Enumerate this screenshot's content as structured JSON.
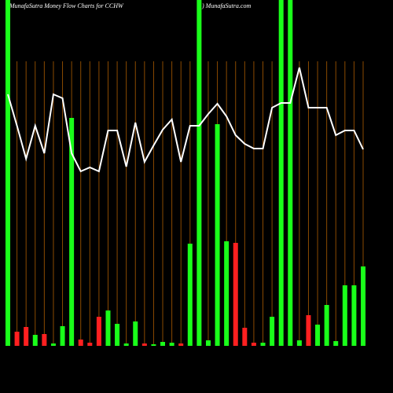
{
  "chart_data": {
    "type": "bar",
    "title": "MunafaSutra  Money Flow  Charts for CCHW",
    "subtitle": ") MunafaSutra.com",
    "categories": [
      null,
      null,
      null,
      null,
      null,
      null,
      null,
      null,
      null,
      null,
      null,
      null,
      null,
      null,
      null,
      null,
      null,
      null,
      null,
      null,
      null,
      null,
      null,
      null,
      null,
      null,
      null,
      null,
      null,
      null,
      null,
      null,
      null,
      null,
      null,
      null,
      null,
      null,
      null,
      null
    ],
    "values": [
      440,
      18,
      24,
      14,
      15,
      3,
      25,
      290,
      8,
      4,
      37,
      45,
      28,
      3,
      31,
      3,
      2,
      5,
      4,
      3,
      130,
      440,
      7,
      282,
      133,
      131,
      23,
      4,
      4,
      37,
      440,
      440,
      7,
      39,
      27,
      52,
      6,
      77,
      77,
      101
    ],
    "bar_colors": [
      "#1aff1a",
      "#ff2020",
      "#ff2020",
      "#1aff1a",
      "#ff2020",
      "#1aff1a",
      "#1aff1a",
      "#1aff1a",
      "#ff2020",
      "#ff2020",
      "#ff2020",
      "#1aff1a",
      "#1aff1a",
      "#1aff1a",
      "#1aff1a",
      "#ff2020",
      "#1aff1a",
      "#1aff1a",
      "#1aff1a",
      "#ff2020",
      "#1aff1a",
      "#1aff1a",
      "#1aff1a",
      "#1aff1a",
      "#1aff1a",
      "#ff2020",
      "#ff2020",
      "#ff2020",
      "#1aff1a",
      "#1aff1a",
      "#1aff1a",
      "#1aff1a",
      "#1aff1a",
      "#ff2020",
      "#1aff1a",
      "#1aff1a",
      "#1aff1a",
      "#1aff1a",
      "#1aff1a",
      "#1aff1a"
    ],
    "ylim": [
      0,
      440
    ],
    "line": {
      "color": "#ffffff",
      "axis": "y2",
      "values": [
        380,
        340,
        298,
        340,
        305,
        380,
        375,
        305,
        282,
        287,
        282,
        334,
        334,
        288,
        344,
        294,
        315,
        335,
        348,
        294,
        340,
        340,
        355,
        368,
        352,
        328,
        317,
        311,
        311,
        363,
        369,
        369,
        414,
        363,
        363,
        363,
        328,
        334,
        334,
        310
      ]
    },
    "y2lim": [
      0,
      500
    ],
    "grid_color": "#8a4a00"
  }
}
